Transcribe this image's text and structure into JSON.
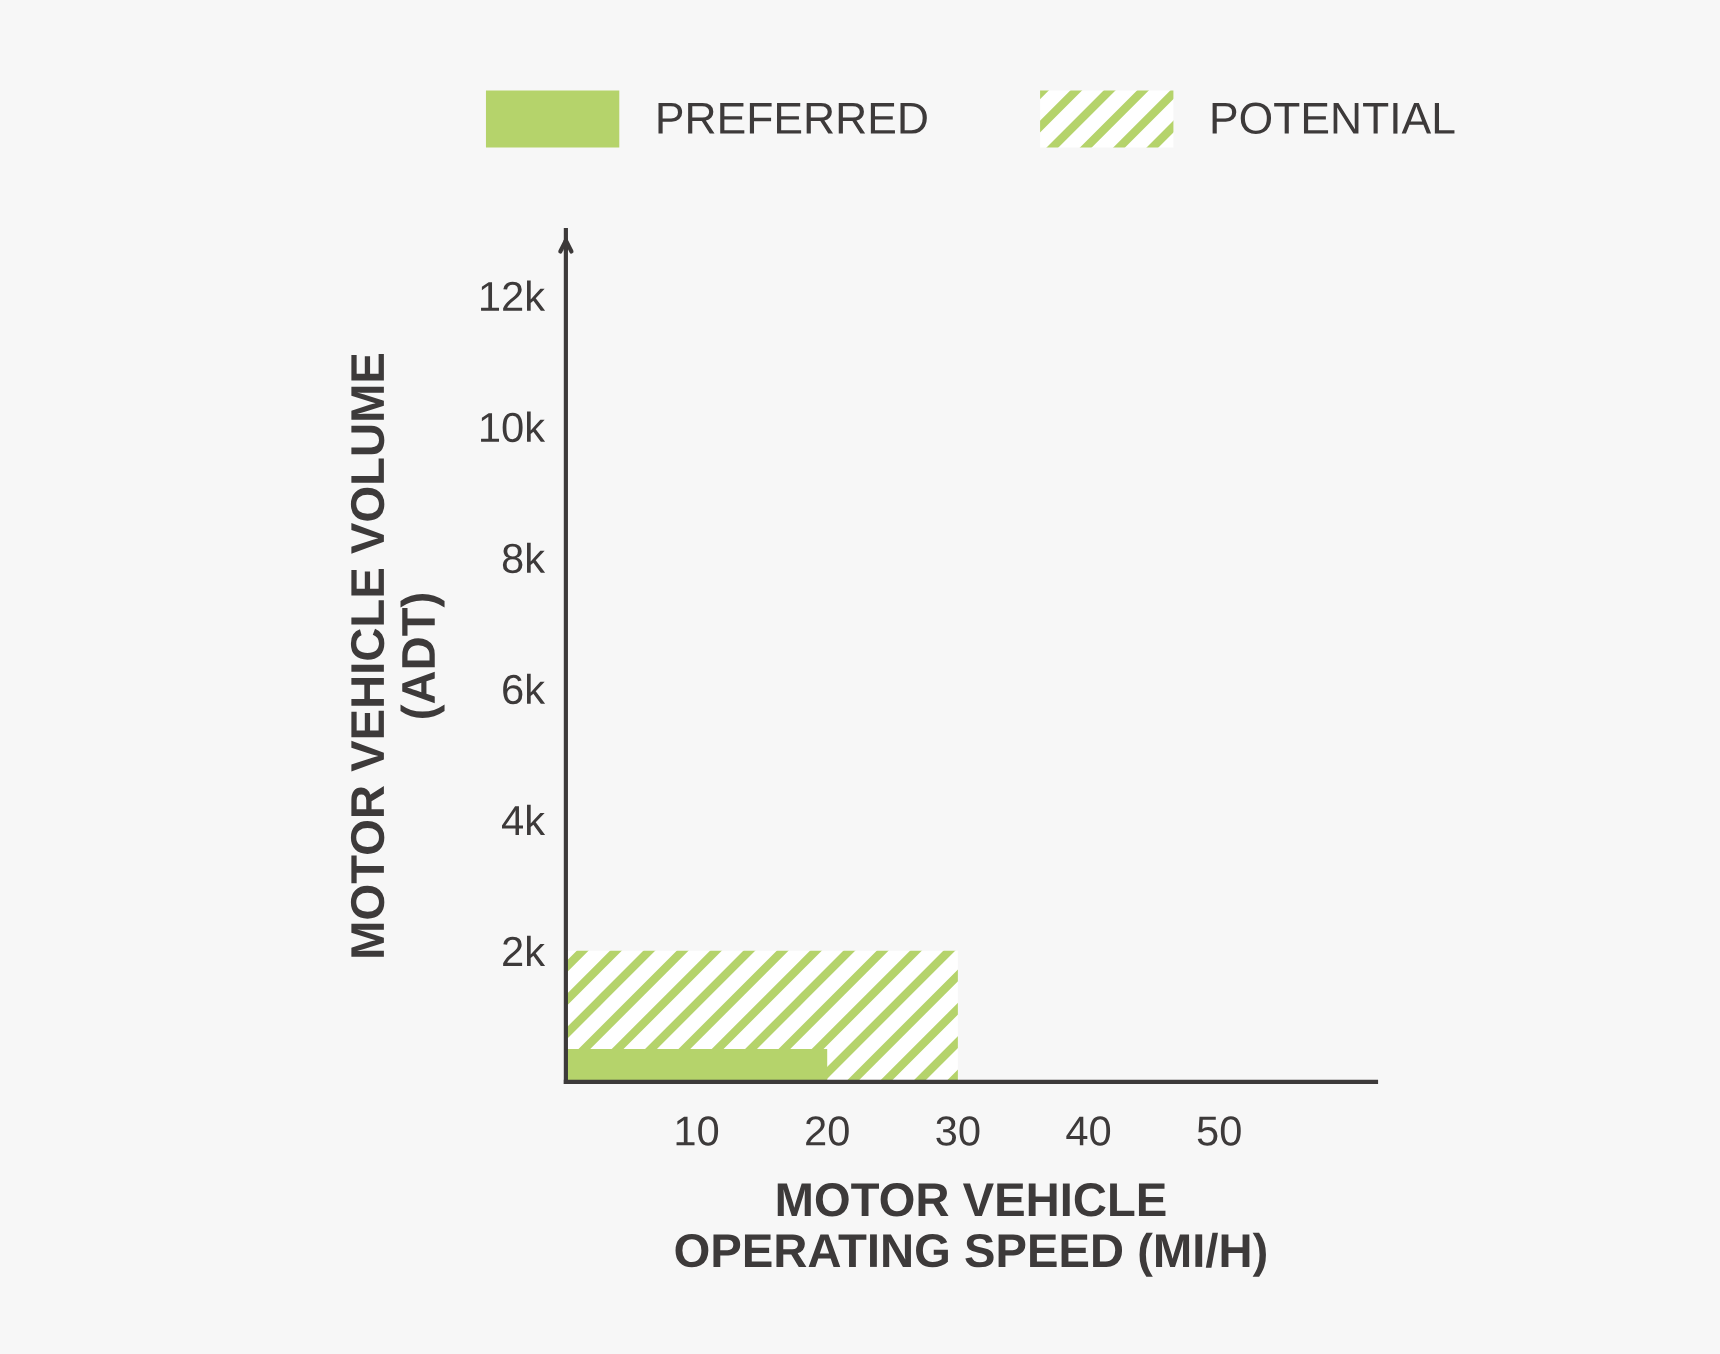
{
  "chart_data": {
    "type": "area",
    "xlabel": "MOTOR VEHICLE\nOPERATING SPEED (MI/H)",
    "ylabel": "MOTOR VEHICLE VOLUME\n(ADT)",
    "series": [
      {
        "name": "POTENTIAL",
        "color": "#b5d36b",
        "x": [
          0,
          30
        ],
        "values": [
          2,
          2
        ]
      },
      {
        "name": "PREFERRED",
        "color": "#b5d36b",
        "x": [
          0,
          20
        ],
        "values": [
          0.5,
          0.5
        ]
      }
    ],
    "xlim": [
      0,
      62
    ],
    "xticks": [
      10,
      20,
      30,
      40,
      50
    ],
    "ylim": [
      0,
      13
    ],
    "yticks": [
      {
        "value": 2,
        "label": "2k"
      },
      {
        "value": 4,
        "label": "4k"
      },
      {
        "value": 6,
        "label": "6k"
      },
      {
        "value": 8,
        "label": "8k"
      },
      {
        "value": 10,
        "label": "10k"
      },
      {
        "value": 12,
        "label": "12k"
      }
    ],
    "grid": false,
    "legend": "top"
  }
}
